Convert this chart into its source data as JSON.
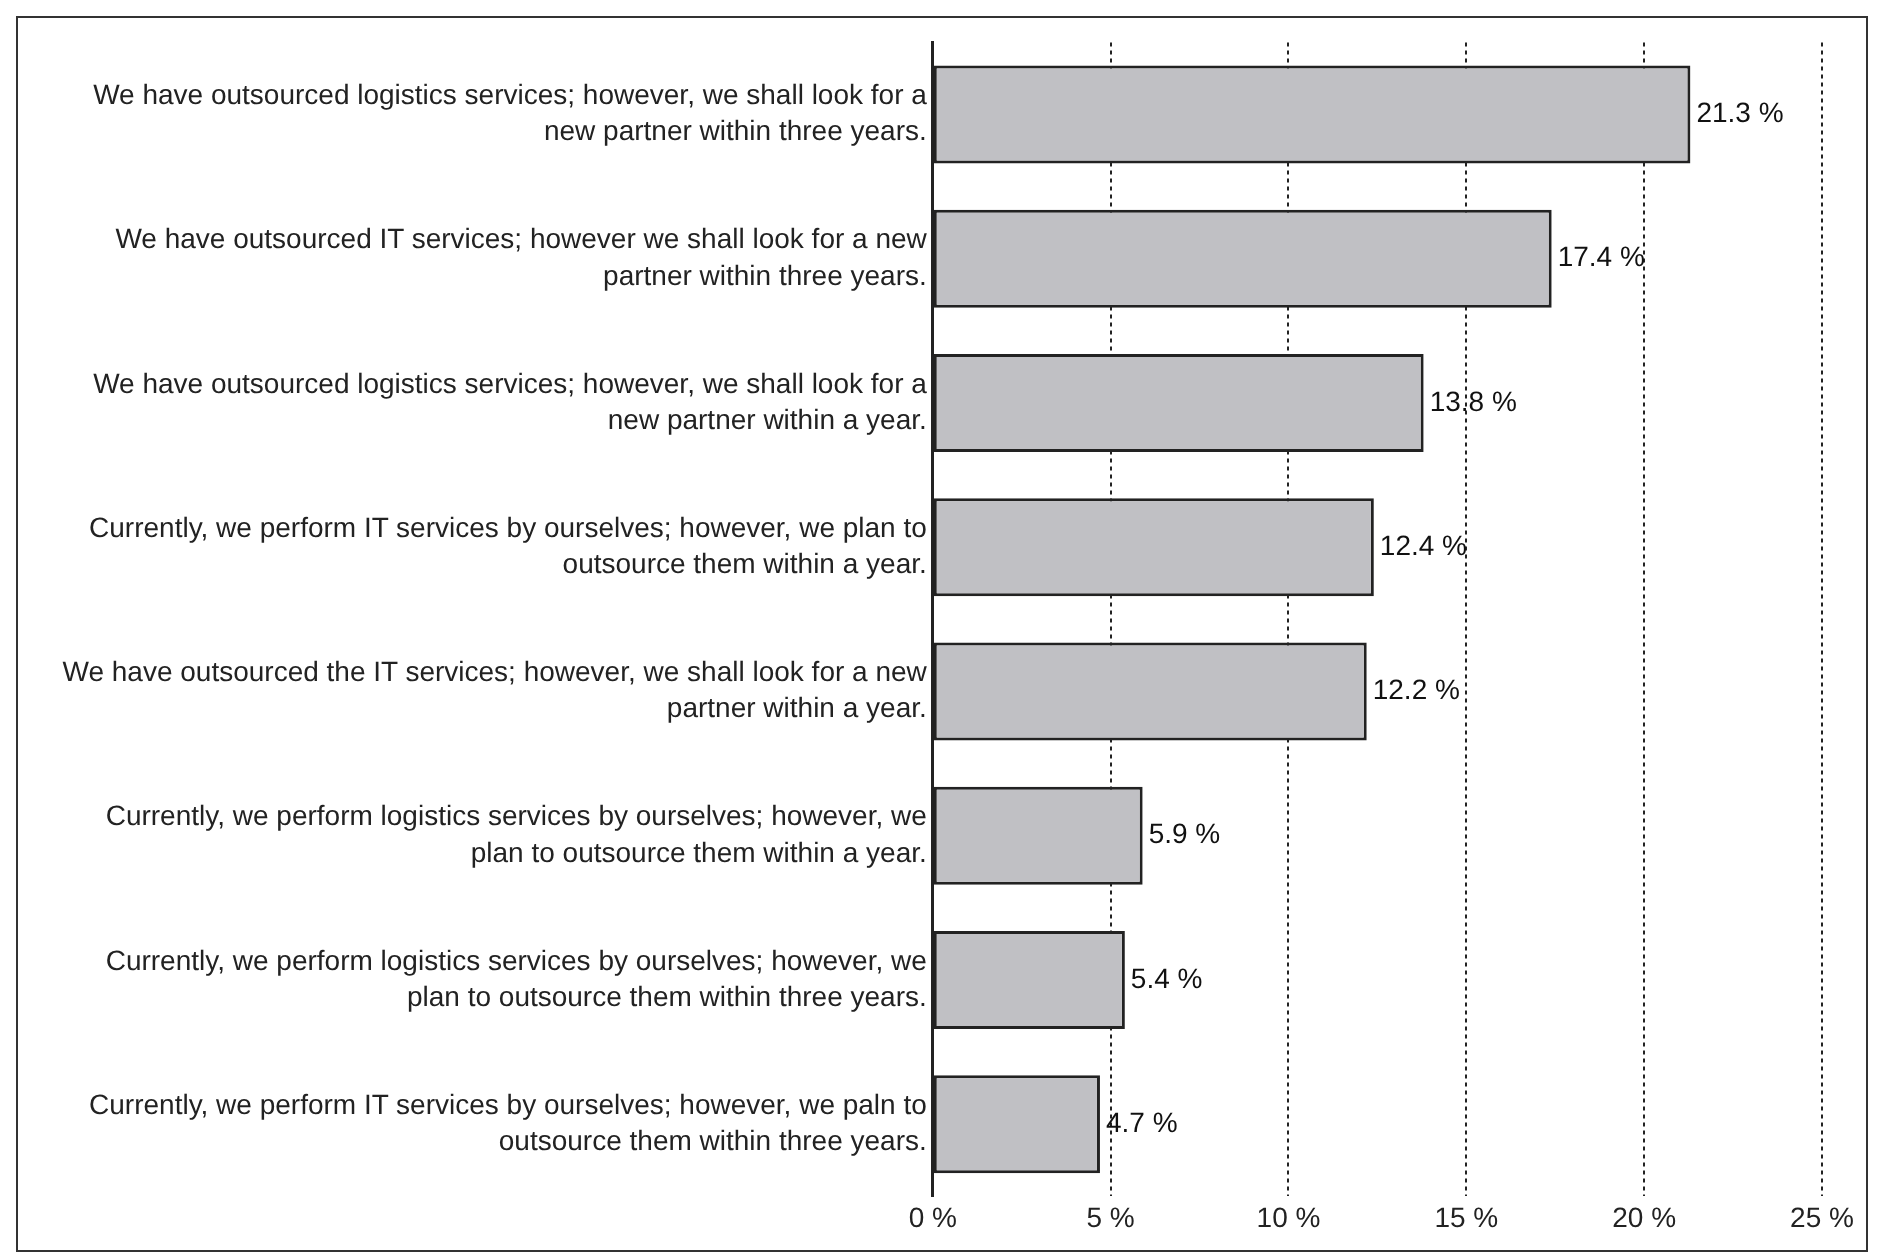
{
  "chart_data": {
    "type": "bar",
    "orientation": "horizontal",
    "categories": [
      "We have outsourced logistics services; however, we shall look for a new partner within three years.",
      "We have outsourced IT services; however we shall look for a new partner within three years.",
      "We have outsourced logistics services; however, we shall look for a new partner within a year.",
      "Currently, we perform IT services by ourselves; however, we plan to outsource them within a year.",
      "We have outsourced the IT services; however, we shall look for a new partner within a year.",
      "Currently, we perform logistics services by ourselves; however, we plan to outsource them within a year.",
      "Currently, we perform logistics services by ourselves; however, we plan to outsource them within three years.",
      "Currently, we perform IT services by ourselves; however, we paln to outsource them within three years."
    ],
    "values": [
      21.3,
      17.4,
      13.8,
      12.4,
      12.2,
      5.9,
      5.4,
      4.7
    ],
    "value_labels": [
      "21.3 %",
      "17.4 %",
      "13.8 %",
      "12.4 %",
      "12.2 %",
      "5.9 %",
      "5.4 %",
      "4.7 %"
    ],
    "color": "#c0c0c4",
    "xlim": [
      0,
      25
    ],
    "xticks": [
      {
        "value": 0,
        "label": "0 %"
      },
      {
        "value": 5,
        "label": "5 %"
      },
      {
        "value": 10,
        "label": "10 %"
      },
      {
        "value": 15,
        "label": "15 %"
      },
      {
        "value": 20,
        "label": "20 %"
      },
      {
        "value": 25,
        "label": "25 %"
      }
    ],
    "grid": "x",
    "legend": false
  }
}
